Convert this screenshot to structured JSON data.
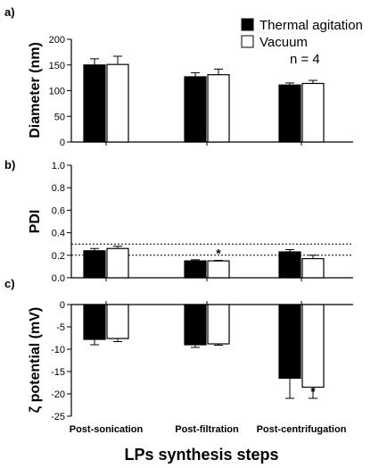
{
  "figure": {
    "legend": [
      {
        "label": "Thermal agitation",
        "fill": "#000000"
      },
      {
        "label": "Vacuum",
        "fill": "#ffffff"
      }
    ],
    "n_note": "n = 4",
    "xlabel": "LPs synthesis steps",
    "categories": [
      "Post-sonication",
      "Post-filtration",
      "Post-centrifugation"
    ]
  },
  "chart_data": [
    {
      "panel": "a)",
      "type": "bar",
      "ylabel": "Diameter (nm)",
      "ylim": [
        0,
        200
      ],
      "yticks": [
        0,
        50,
        100,
        150,
        200
      ],
      "tick_labels": [
        "0",
        "50",
        "100",
        "150",
        "200"
      ],
      "categories": [
        "Post-sonication",
        "Post-filtration",
        "Post-centrifugation"
      ],
      "series": [
        {
          "name": "Thermal agitation",
          "values": [
            150,
            127,
            111
          ],
          "errors": [
            12,
            8,
            4
          ]
        },
        {
          "name": "Vacuum",
          "values": [
            151,
            131,
            114
          ],
          "errors": [
            16,
            11,
            6
          ]
        }
      ]
    },
    {
      "panel": "b)",
      "type": "bar",
      "ylabel": "PDI",
      "ylim": [
        0,
        1.0
      ],
      "yticks": [
        0,
        0.2,
        0.4,
        0.6,
        0.8,
        1.0
      ],
      "tick_labels": [
        "0.0",
        "0.2",
        "0.4",
        "0.6",
        "0.8",
        "1.0"
      ],
      "reference_lines": [
        0.2,
        0.3
      ],
      "categories": [
        "Post-sonication",
        "Post-filtration",
        "Post-centrifugation"
      ],
      "series": [
        {
          "name": "Thermal agitation",
          "values": [
            0.24,
            0.15,
            0.23
          ],
          "errors": [
            0.02,
            0.01,
            0.02
          ]
        },
        {
          "name": "Vacuum",
          "values": [
            0.26,
            0.15,
            0.17
          ],
          "errors": [
            0.02,
            0.005,
            0.03
          ]
        }
      ],
      "annotations": [
        {
          "series": 1,
          "category": 1,
          "text": "*"
        }
      ]
    },
    {
      "panel": "c)",
      "type": "bar",
      "ylabel": "ζ potential (mV)",
      "ylim": [
        -25,
        0
      ],
      "yticks": [
        -25,
        -20,
        -15,
        -10,
        -5,
        0
      ],
      "tick_labels": [
        "-25",
        "-20",
        "-15",
        "-10",
        "-5",
        "0"
      ],
      "categories": [
        "Post-sonication",
        "Post-filtration",
        "Post-centrifugation"
      ],
      "series": [
        {
          "name": "Thermal agitation",
          "values": [
            -7.8,
            -9.0,
            -16.5
          ],
          "errors": [
            1.2,
            0.6,
            4.5
          ]
        },
        {
          "name": "Vacuum",
          "values": [
            -7.6,
            -8.8,
            -18.5
          ],
          "errors": [
            0.7,
            0.3,
            2.5
          ]
        }
      ],
      "annotations": [
        {
          "series": 1,
          "category": 2,
          "text": "*"
        }
      ]
    }
  ]
}
